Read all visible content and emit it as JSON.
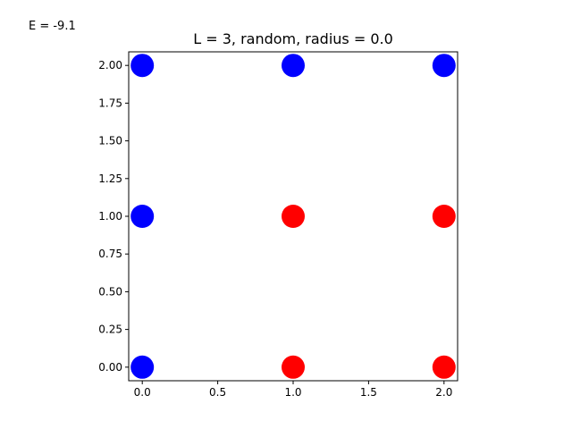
{
  "energy_label": "E = -9.1",
  "chart_data": {
    "type": "scatter",
    "title": "L = 3, random, radius = 0.0",
    "xlabel": "",
    "ylabel": "",
    "xlim": [
      -0.09,
      2.09
    ],
    "ylim": [
      -0.09,
      2.09
    ],
    "x_ticks": [
      0.0,
      0.5,
      1.0,
      1.5,
      2.0
    ],
    "x_tick_labels": [
      "0.0",
      "0.5",
      "1.0",
      "1.5",
      "2.0"
    ],
    "y_ticks": [
      0.0,
      0.25,
      0.5,
      0.75,
      1.0,
      1.25,
      1.5,
      1.75,
      2.0
    ],
    "y_tick_labels": [
      "0.00",
      "0.25",
      "0.50",
      "0.75",
      "1.00",
      "1.25",
      "1.50",
      "1.75",
      "2.00"
    ],
    "grid": false,
    "colors": {
      "blue": "#0000ff",
      "red": "#ff0000"
    },
    "points": [
      {
        "x": 0,
        "y": 2,
        "color": "blue"
      },
      {
        "x": 1,
        "y": 2,
        "color": "blue"
      },
      {
        "x": 2,
        "y": 2,
        "color": "blue"
      },
      {
        "x": 0,
        "y": 1,
        "color": "blue"
      },
      {
        "x": 1,
        "y": 1,
        "color": "red"
      },
      {
        "x": 2,
        "y": 1,
        "color": "red"
      },
      {
        "x": 0,
        "y": 0,
        "color": "blue"
      },
      {
        "x": 1,
        "y": 0,
        "color": "red"
      },
      {
        "x": 2,
        "y": 0,
        "color": "red"
      }
    ]
  }
}
